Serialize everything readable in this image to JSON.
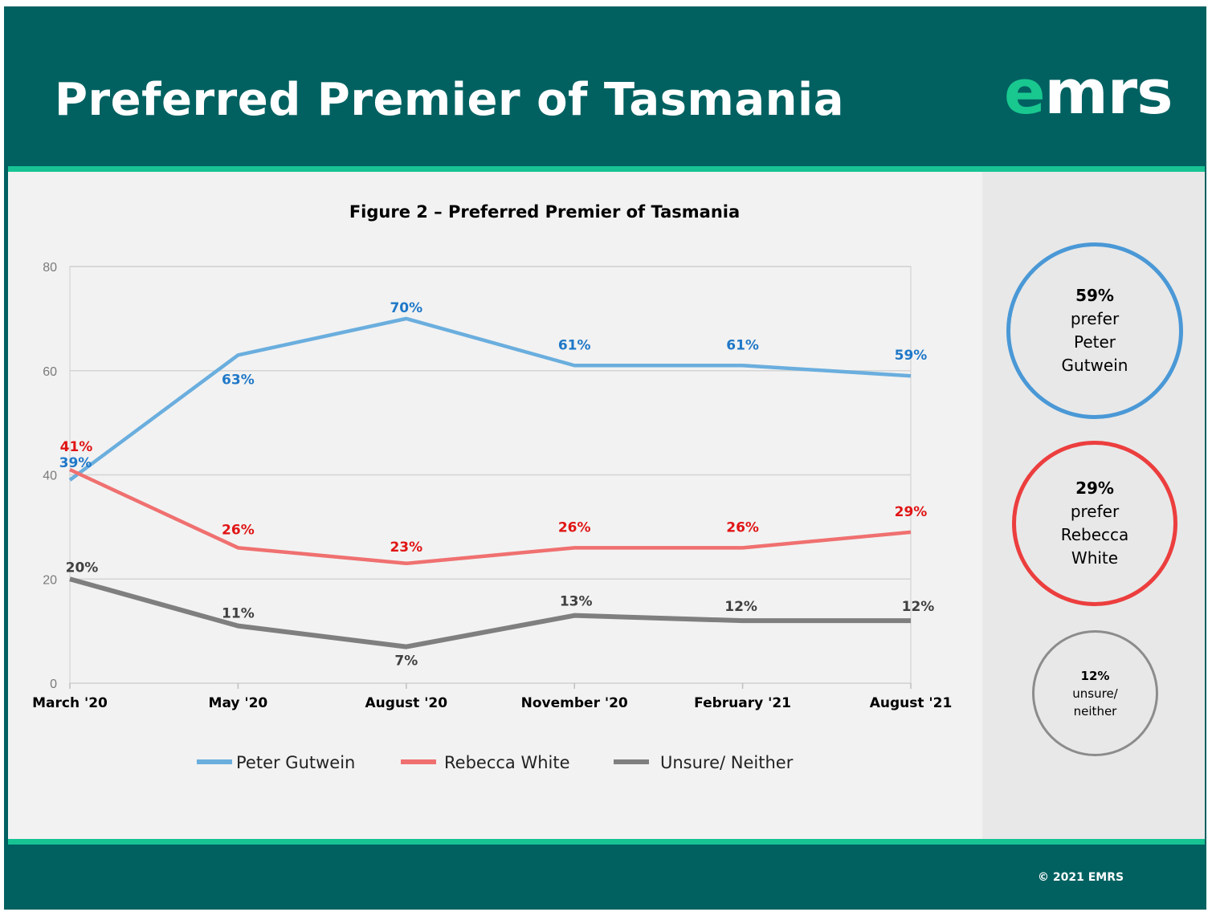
{
  "header": {
    "title": "Preferred Premier of Tasmania",
    "logo_accent": "e",
    "logo_rest": "mrs"
  },
  "footer": {
    "copyright": "© 2021 EMRS"
  },
  "colors": {
    "band": "#016161",
    "accent": "#17c393",
    "gutwein": "#6aaede",
    "white": "#f06e6e",
    "unsure": "#7f7f7f"
  },
  "chart_data": {
    "type": "line",
    "title": "Figure 2 – Preferred Premier of Tasmania",
    "categories": [
      "March '20",
      "May '20",
      "August '20",
      "November '20",
      "February '21",
      "August '21"
    ],
    "ylim": [
      0,
      80
    ],
    "yticks": [
      0,
      20,
      40,
      60,
      80
    ],
    "grid": true,
    "legend": "bottom",
    "series": [
      {
        "name": "Peter Gutwein",
        "values": [
          39,
          63,
          70,
          61,
          61,
          59
        ],
        "labels": [
          "39%",
          "63%",
          "70%",
          "61%",
          "61%",
          "59%"
        ],
        "color": "#6aaede",
        "label_color": "#1f78c8"
      },
      {
        "name": "Rebecca White",
        "values": [
          41,
          26,
          23,
          26,
          26,
          29
        ],
        "labels": [
          "41%",
          "26%",
          "23%",
          "26%",
          "26%",
          "29%"
        ],
        "color": "#f07070",
        "label_color": "#e01515"
      },
      {
        "name": "Unsure/ Neither",
        "values": [
          20,
          11,
          7,
          13,
          12,
          12
        ],
        "labels": [
          "20%",
          "11%",
          "7%",
          "13%",
          "12%",
          "12%"
        ],
        "color": "#7f7f7f",
        "label_color": "#404040"
      }
    ]
  },
  "callouts": [
    {
      "pct": "59%",
      "line1": "prefer",
      "line2": "Peter",
      "line3": "Gutwein",
      "color": "#4a98d6"
    },
    {
      "pct": "29%",
      "line1": "prefer",
      "line2": "Rebecca",
      "line3": "White",
      "color": "#ec3e3e"
    },
    {
      "pct": "12%",
      "line1": "unsure/",
      "line2": "neither",
      "color": "#8c8c8c"
    }
  ]
}
